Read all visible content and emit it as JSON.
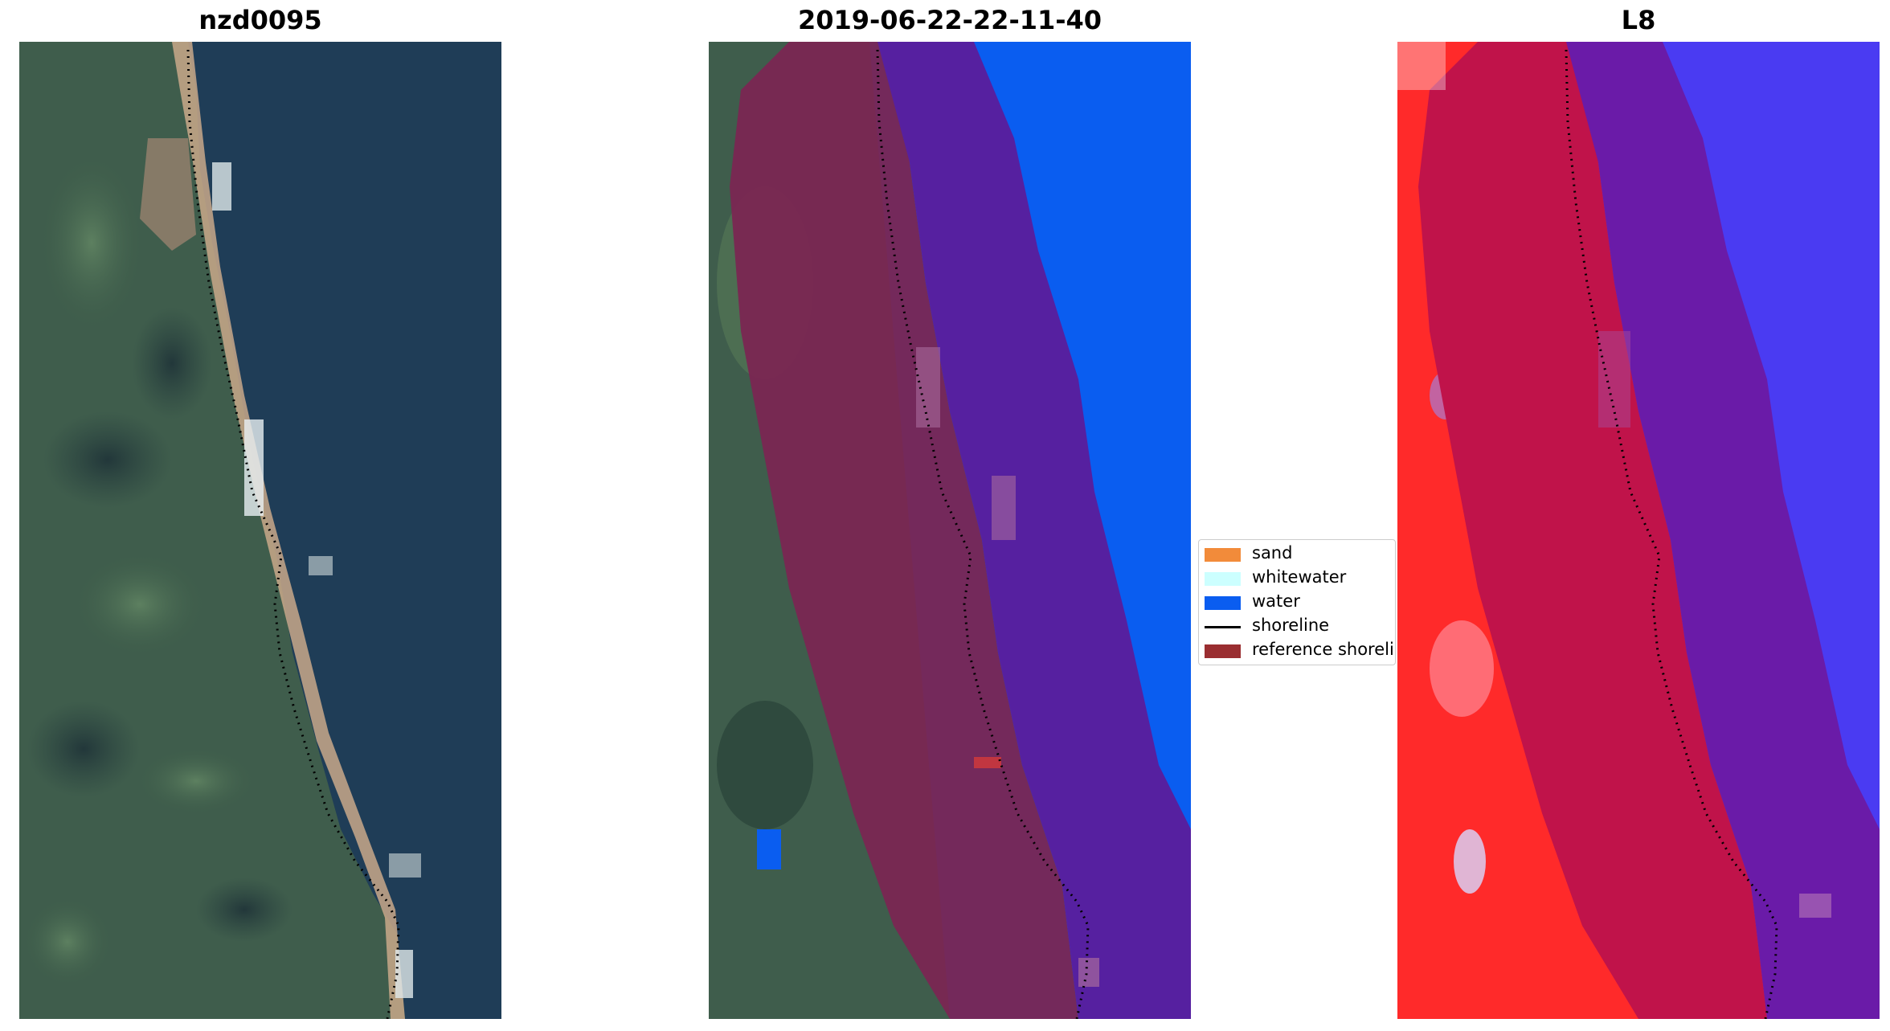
{
  "panels": [
    {
      "title": "nzd0095"
    },
    {
      "title": "2019-06-22-22-11-40"
    },
    {
      "title": "L8"
    }
  ],
  "legend": {
    "items": [
      {
        "label": "sand",
        "color": "#f28b3a",
        "kind": "patch"
      },
      {
        "label": "whitewater",
        "color": "#ccffff",
        "kind": "patch"
      },
      {
        "label": "water",
        "color": "#0a5df0",
        "kind": "patch"
      },
      {
        "label": "shoreline",
        "color": "#000000",
        "kind": "line"
      },
      {
        "label": "reference shoreline",
        "color": "#9a2e31",
        "kind": "patch"
      }
    ]
  },
  "colors": {
    "land_dark": "#2f4a3e",
    "land_green": "#4d6e52",
    "sea": "#1e3d57",
    "sand": "#c9a88a",
    "buffer_land": "#7a2652",
    "buffer_sea": "#5620a0",
    "water_class": "#0a5df0",
    "index_land": "#ff2a2a",
    "index_buffer_land": "#c0134a",
    "index_buffer_sea": "#6a1ba8",
    "index_sea": "#4a3bf2"
  }
}
